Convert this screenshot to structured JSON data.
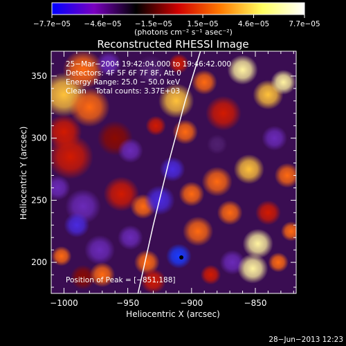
{
  "chart_data": {
    "type": "heatmap",
    "title": "Reconstructed RHESSI Image",
    "xlabel": "Heliocentric X (arcsec)",
    "ylabel": "Heliocentric Y (arcsec)",
    "xlim": [
      -1010,
      -818
    ],
    "ylim": [
      175,
      370
    ],
    "xticks": [
      -1000,
      -950,
      -900,
      -850
    ],
    "xtick_labels": [
      "−1000",
      "−950",
      "−900",
      "−850"
    ],
    "yticks": [
      200,
      250,
      300,
      350
    ],
    "ytick_labels": [
      "200",
      "250",
      "300",
      "350"
    ],
    "colorbar": {
      "range": [
        -7.7e-05,
        7.7e-05
      ],
      "ticks": [
        -7.7e-05,
        -4.6e-05,
        -1.5e-05,
        1.5e-05,
        4.6e-05,
        7.7e-05
      ],
      "tick_labels": [
        "−7.7e−05",
        "−4.6e−05",
        "−1.5e−05",
        "1.5e−05",
        "4.6e−05",
        "7.7e−05"
      ],
      "label": "(photons cm⁻² s⁻¹ asec⁻²)",
      "colors": [
        "#0000ff",
        "#7a00c0",
        "#000000",
        "#d00000",
        "#ff7a00",
        "#ffff60",
        "#ffffff"
      ]
    },
    "annotations": [
      "25−Mar−2004 19:42:04.000 to 19:46:42.000",
      "Detectors: 4F 5F 6F 7F 8F, Att 0",
      "Energy Range: 25.0 − 50.0 keV",
      "Clean    Total counts: 3.37E+03"
    ],
    "peak_label": "Position of Peak = [−851,188]",
    "peak": [
      -851,
      188
    ],
    "marker": [
      -908,
      204
    ],
    "limb_curve": [
      [
        -942,
        175
      ],
      [
        -930,
        230
      ],
      [
        -918,
        280
      ],
      [
        -905,
        330
      ],
      [
        -893,
        370
      ]
    ],
    "blobs": [
      {
        "x": -1000,
        "y": 335,
        "s": 18,
        "v": 0.8
      },
      {
        "x": -985,
        "y": 355,
        "s": 16,
        "v": 0.7
      },
      {
        "x": -1000,
        "y": 305,
        "s": 14,
        "v": 0.5
      },
      {
        "x": -980,
        "y": 325,
        "s": 16,
        "v": 0.6
      },
      {
        "x": -995,
        "y": 285,
        "s": 18,
        "v": 0.5
      },
      {
        "x": -985,
        "y": 245,
        "s": 14,
        "v": -0.4
      },
      {
        "x": -990,
        "y": 230,
        "s": 10,
        "v": -0.7
      },
      {
        "x": -972,
        "y": 210,
        "s": 12,
        "v": -0.5
      },
      {
        "x": -948,
        "y": 220,
        "s": 10,
        "v": -0.5
      },
      {
        "x": -955,
        "y": 255,
        "s": 14,
        "v": 0.4
      },
      {
        "x": -960,
        "y": 300,
        "s": 14,
        "v": 0.3
      },
      {
        "x": -985,
        "y": 188,
        "s": 10,
        "v": 0.3
      },
      {
        "x": -1002,
        "y": 205,
        "s": 8,
        "v": 0.6
      },
      {
        "x": -970,
        "y": 190,
        "s": 10,
        "v": 0.55
      },
      {
        "x": -938,
        "y": 245,
        "s": 10,
        "v": 0.55
      },
      {
        "x": -948,
        "y": 290,
        "s": 10,
        "v": -0.5
      },
      {
        "x": -925,
        "y": 250,
        "s": 12,
        "v": -0.6
      },
      {
        "x": -915,
        "y": 275,
        "s": 10,
        "v": -0.6
      },
      {
        "x": -932,
        "y": 355,
        "s": 12,
        "v": -0.3
      },
      {
        "x": -912,
        "y": 330,
        "s": 14,
        "v": 0.8
      },
      {
        "x": -905,
        "y": 305,
        "s": 10,
        "v": 0.7
      },
      {
        "x": -928,
        "y": 310,
        "s": 8,
        "v": 0.5
      },
      {
        "x": -910,
        "y": 360,
        "s": 8,
        "v": 0.5
      },
      {
        "x": -890,
        "y": 345,
        "s": 10,
        "v": 0.6
      },
      {
        "x": -875,
        "y": 320,
        "s": 14,
        "v": 0.5
      },
      {
        "x": -860,
        "y": 355,
        "s": 12,
        "v": 0.9
      },
      {
        "x": -840,
        "y": 335,
        "s": 12,
        "v": 0.8
      },
      {
        "x": -828,
        "y": 345,
        "s": 10,
        "v": 0.9
      },
      {
        "x": -835,
        "y": 300,
        "s": 10,
        "v": -0.4
      },
      {
        "x": -825,
        "y": 270,
        "s": 10,
        "v": 0.6
      },
      {
        "x": -855,
        "y": 275,
        "s": 12,
        "v": 0.85
      },
      {
        "x": -880,
        "y": 265,
        "s": 12,
        "v": 0.7
      },
      {
        "x": -870,
        "y": 240,
        "s": 10,
        "v": 0.6
      },
      {
        "x": -840,
        "y": 240,
        "s": 10,
        "v": 0.5
      },
      {
        "x": -895,
        "y": 225,
        "s": 12,
        "v": 0.7
      },
      {
        "x": -900,
        "y": 255,
        "s": 10,
        "v": 0.6
      },
      {
        "x": -910,
        "y": 205,
        "s": 10,
        "v": -0.8
      },
      {
        "x": -935,
        "y": 200,
        "s": 10,
        "v": 0.7
      },
      {
        "x": -930,
        "y": 185,
        "s": 10,
        "v": 0.5
      },
      {
        "x": -868,
        "y": 200,
        "s": 10,
        "v": -0.4
      },
      {
        "x": -852,
        "y": 195,
        "s": 12,
        "v": 1.0
      },
      {
        "x": -848,
        "y": 215,
        "s": 12,
        "v": 0.9
      },
      {
        "x": -832,
        "y": 200,
        "s": 8,
        "v": 0.6
      },
      {
        "x": -885,
        "y": 190,
        "s": 8,
        "v": 0.5
      },
      {
        "x": -822,
        "y": 225,
        "s": 8,
        "v": 0.6
      },
      {
        "x": -880,
        "y": 295,
        "s": 8,
        "v": -0.3
      },
      {
        "x": -965,
        "y": 360,
        "s": 10,
        "v": -0.4
      },
      {
        "x": -1005,
        "y": 260,
        "s": 10,
        "v": -0.5
      }
    ]
  },
  "footer": {
    "timestamp": "28−Jun−2013 12:23"
  }
}
